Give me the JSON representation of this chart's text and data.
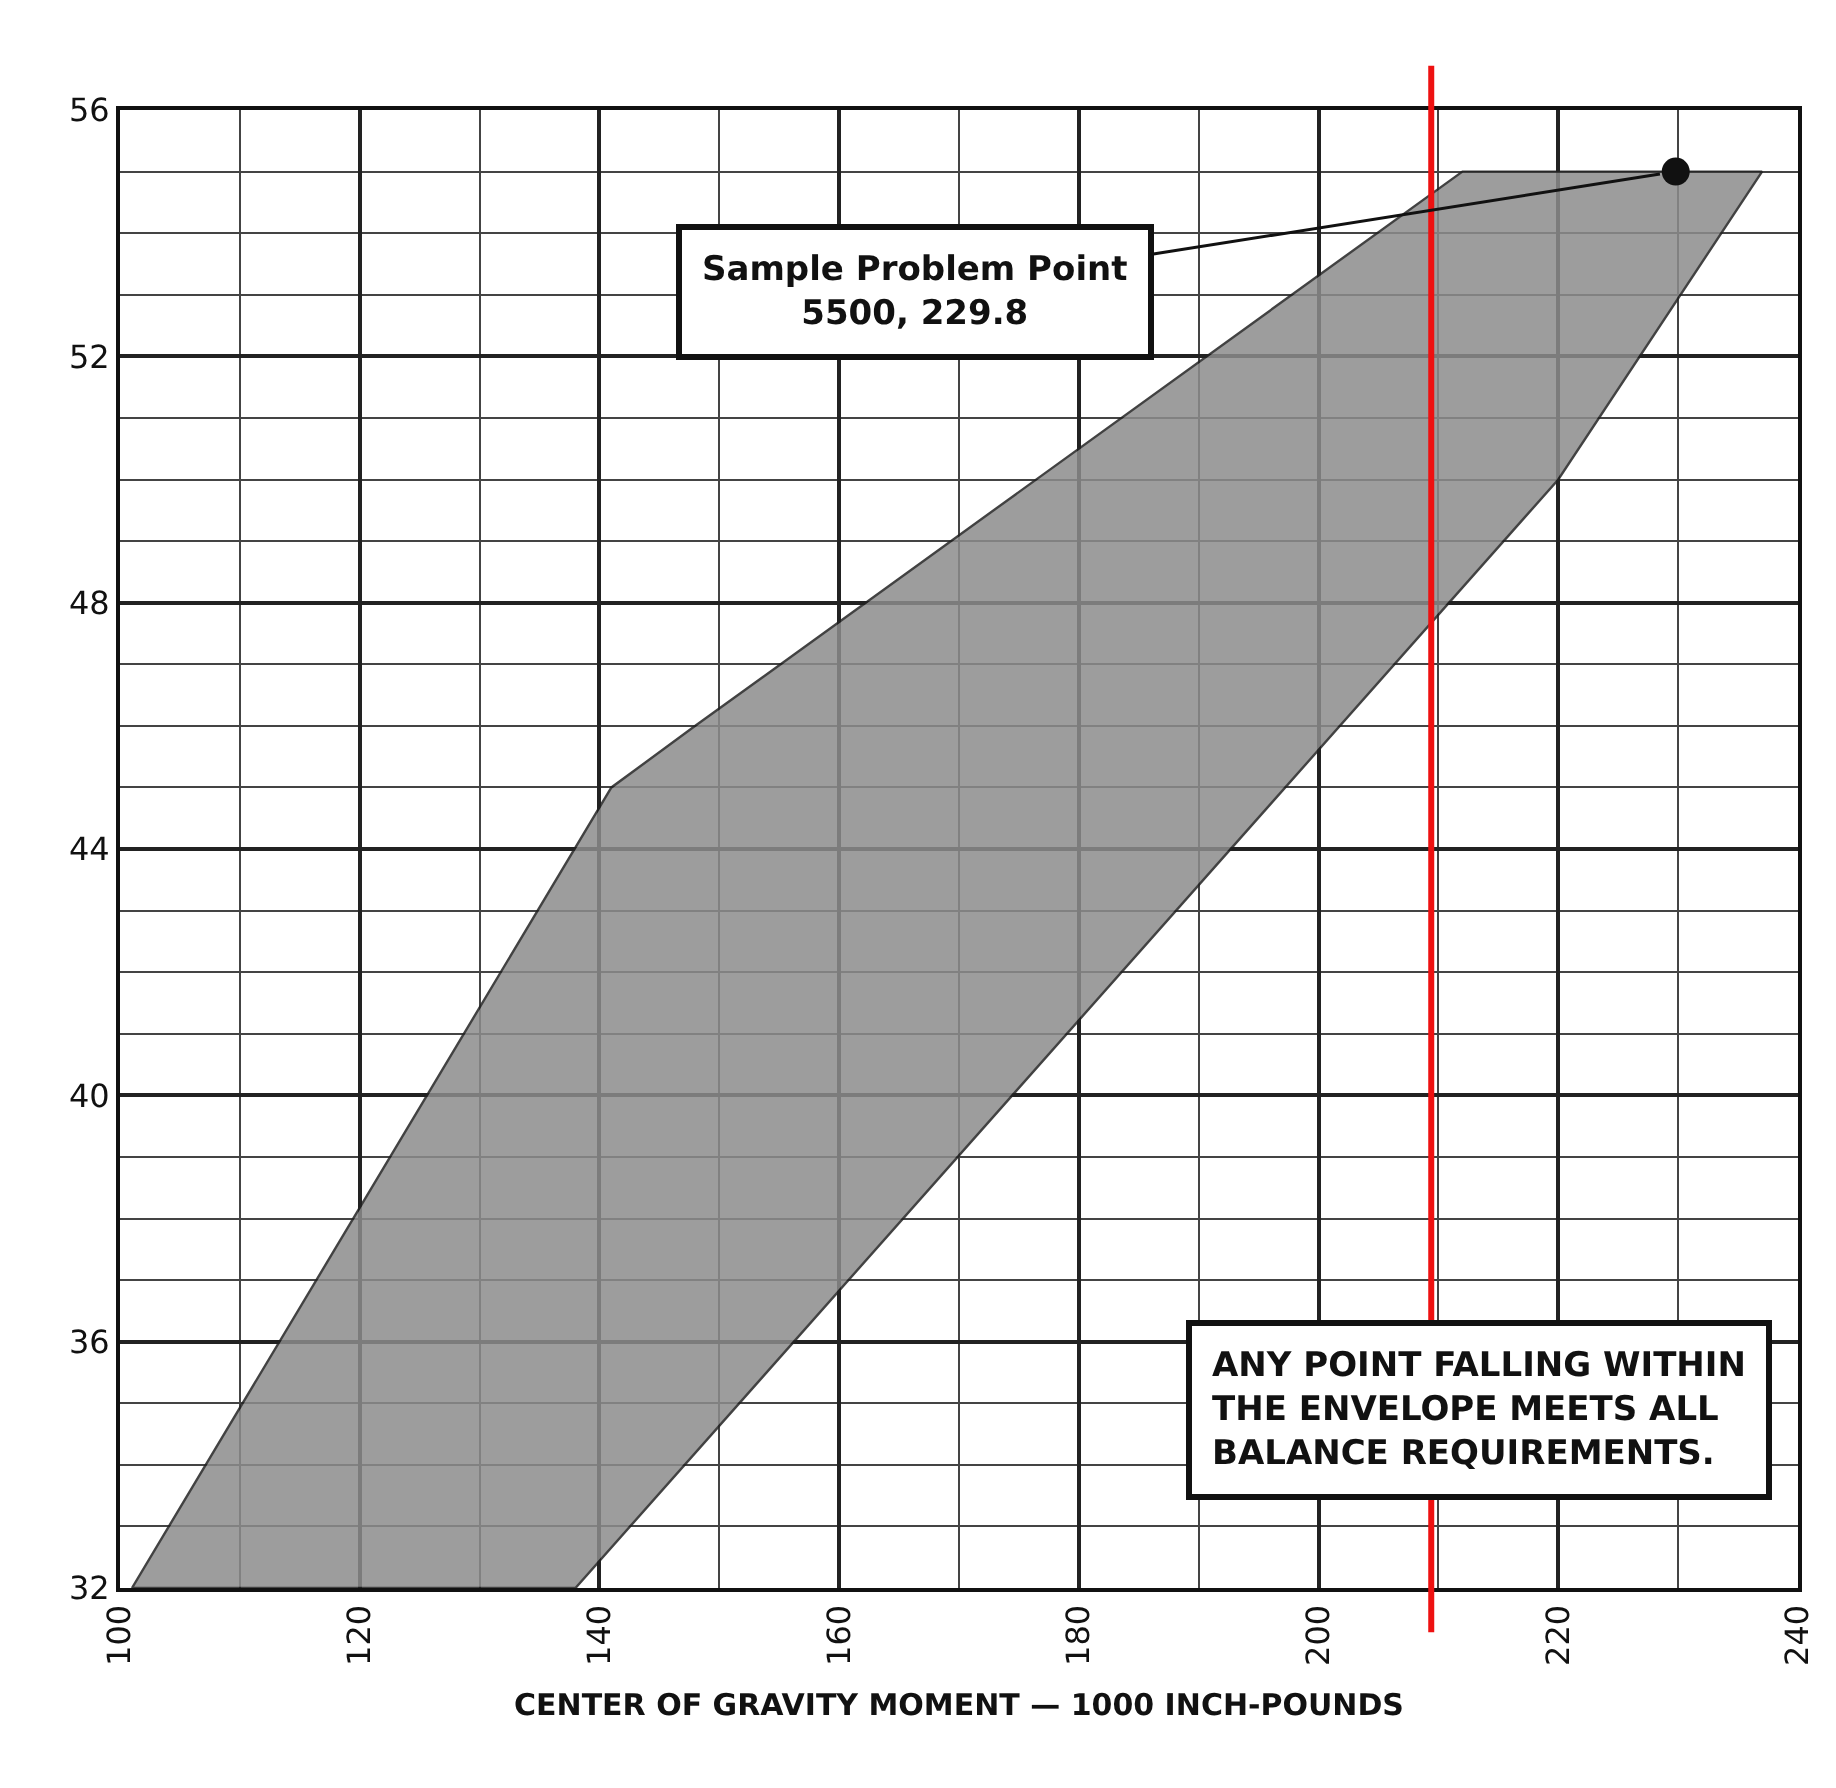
{
  "chart_data": {
    "type": "area",
    "xlabel": "CENTER OF GRAVITY MOMENT — 1000 INCH-POUNDS",
    "xlim": [
      100,
      240
    ],
    "xticks": [
      100,
      120,
      140,
      160,
      180,
      200,
      220,
      240
    ],
    "ylim": [
      32,
      56
    ],
    "yticks": [
      32,
      36,
      40,
      44,
      48,
      52,
      56
    ],
    "grid": true,
    "series": [
      {
        "color": "#8c8c8c",
        "x": [
          101,
          141,
          148,
          212,
          237,
          220,
          138,
          101
        ],
        "values": [
          32,
          45,
          46,
          55,
          55,
          50,
          32,
          32
        ]
      },
      {
        "type": "scatter",
        "marker": "circle",
        "color": "#111111",
        "x": [
          229.8
        ],
        "values": [
          55.0
        ]
      }
    ],
    "ref_lines": [
      {
        "axis": "x",
        "value": 209.4,
        "color": "#ee1111"
      }
    ],
    "annotations": [
      {
        "text": "Sample Problem Point\n5500, 229.8",
        "x": 229.8,
        "y": 55.0
      },
      "ANY POINT FALLING WITHIN\nTHE ENVELOPE MEETS ALL\nBALANCE REQUIREMENTS."
    ]
  }
}
